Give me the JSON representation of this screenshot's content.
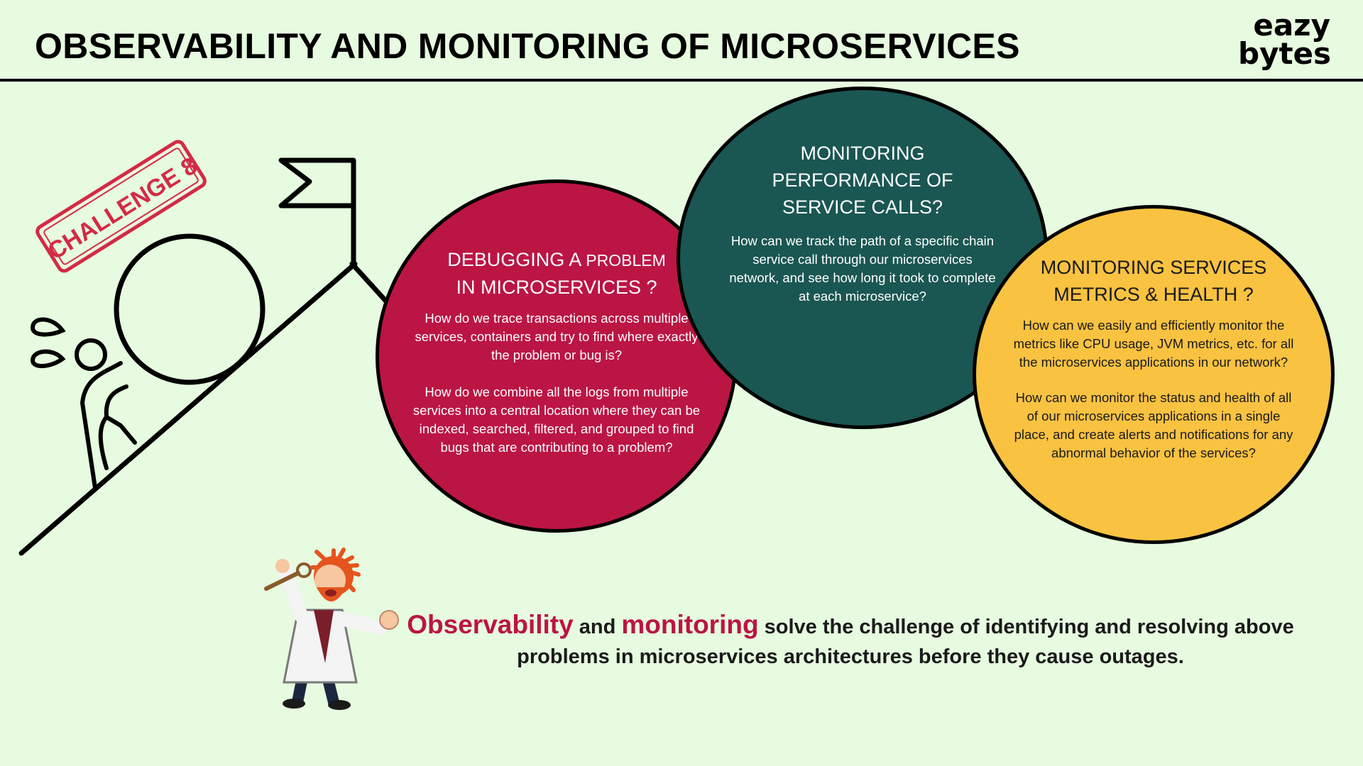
{
  "header": {
    "title": "OBSERVABILITY AND MONITORING OF MICROSERVICES",
    "logo_line1": "eazy",
    "logo_line2": "bytes"
  },
  "stamp": {
    "label": "CHALLENGE 8"
  },
  "circles": [
    {
      "title_big": "DEBUGGING A ",
      "title_small": "PROBLEM",
      "title_line2": "IN MICROSERVICES ?",
      "paragraphs": [
        "How do we trace transactions across multiple services, containers and try to find where exactly the problem or bug is?",
        "How do we combine all the logs from multiple services into a central location where they can be indexed, searched, filtered, and grouped to find bugs that are contributing to a problem?"
      ]
    },
    {
      "title_line1": "MONITORING",
      "title_line2": "PERFORMANCE OF",
      "title_line3": "SERVICE CALLS?",
      "paragraphs": [
        "How can we track the path of a specific chain service call through our microservices network, and see how long it took to complete at each microservice?"
      ]
    },
    {
      "title_line1": "MONITORING SERVICES",
      "title_line2": "METRICS & HEALTH ?",
      "paragraphs": [
        "How can we easily and efficiently monitor the metrics like CPU usage, JVM metrics, etc. for all the microservices applications in our network?",
        "How can we monitor the status and health of all of our microservices applications in a single place, and create alerts and notifications for any abnormal behavior of the services?"
      ]
    }
  ],
  "footer": {
    "hl1": "Observability",
    "t1": " and ",
    "hl2": "monitoring",
    "t2": " solve the challenge of identifying and resolving above problems in microservices architectures before they cause outages."
  },
  "colors": {
    "background": "#E6FBDF",
    "red": "#BB1544",
    "green": "#1A5652",
    "yellow": "#F9C241",
    "stamp": "#D42A45"
  }
}
